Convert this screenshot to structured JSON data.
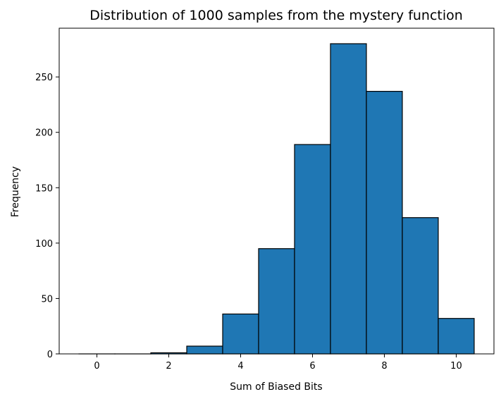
{
  "chart_data": {
    "type": "bar",
    "title": "Distribution of 1000 samples from the mystery function",
    "xlabel": "Sum of Biased Bits",
    "ylabel": "Frequency",
    "bins": [
      {
        "left": -0.5,
        "right": 0.5,
        "count": 0
      },
      {
        "left": 0.5,
        "right": 1.5,
        "count": 0
      },
      {
        "left": 1.5,
        "right": 2.5,
        "count": 1
      },
      {
        "left": 2.5,
        "right": 3.5,
        "count": 7
      },
      {
        "left": 3.5,
        "right": 4.5,
        "count": 36
      },
      {
        "left": 4.5,
        "right": 5.5,
        "count": 95
      },
      {
        "left": 5.5,
        "right": 6.5,
        "count": 189
      },
      {
        "left": 6.5,
        "right": 7.5,
        "count": 280
      },
      {
        "left": 7.5,
        "right": 8.5,
        "count": 237
      },
      {
        "left": 8.5,
        "right": 9.5,
        "count": 123
      },
      {
        "left": 9.5,
        "right": 10.5,
        "count": 32
      }
    ],
    "xlim": [
      -1.05,
      11.05
    ],
    "ylim": [
      0,
      294
    ],
    "xticks": [
      0,
      2,
      4,
      6,
      8,
      10
    ],
    "xtick_labels": [
      "0",
      "2",
      "4",
      "6",
      "8",
      "10"
    ],
    "yticks": [
      0,
      50,
      100,
      150,
      200,
      250
    ],
    "ytick_labels": [
      "0",
      "50",
      "100",
      "150",
      "200",
      "250"
    ],
    "bar_color": "#1f77b4",
    "edge_color": "#000000",
    "grid": false
  }
}
